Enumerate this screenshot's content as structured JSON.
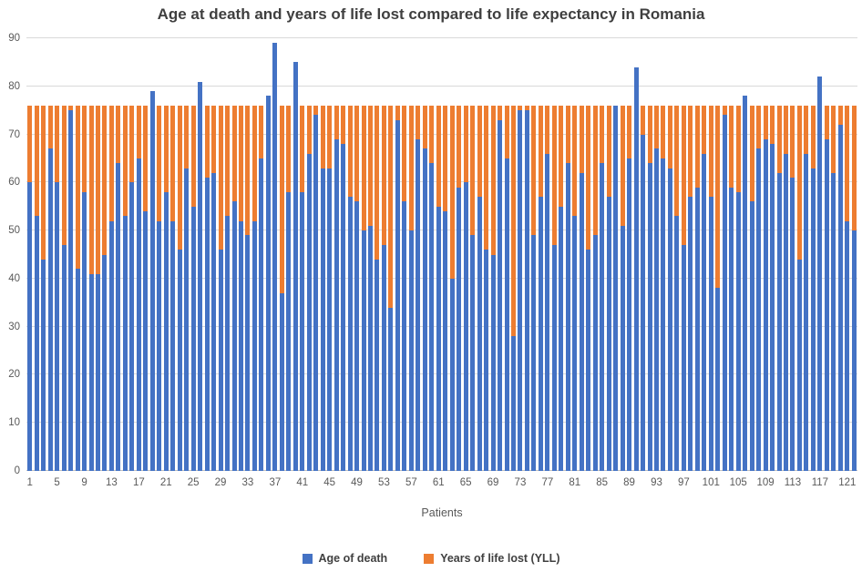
{
  "title": "Age at death and years of life lost compared to life expectancy in Romania",
  "x_axis_title": "Patients",
  "legend": {
    "items": [
      {
        "label": "Age of death",
        "color": "#4472C4"
      },
      {
        "label": "Years of life lost (YLL)",
        "color": "#ED7D31"
      }
    ]
  },
  "colors": {
    "age_of_death": "#4472C4",
    "years_of_life_lost": "#ED7D31",
    "gridline": "#d9d9d9",
    "axis_text": "#595959",
    "title_text": "#3f3f3f"
  },
  "chart_data": {
    "type": "bar",
    "stacked": true,
    "title": "Age at death and years of life lost compared to life expectancy in Romania",
    "xlabel": "Patients",
    "ylabel": "",
    "ylim": [
      0,
      90
    ],
    "grid": true,
    "legend_position": "bottom",
    "life_expectancy_romania": 76,
    "n_patients": 122,
    "y_ticks": [
      0,
      10,
      20,
      30,
      40,
      50,
      60,
      70,
      80,
      90
    ],
    "x_tick_labels": [
      "1",
      "5",
      "9",
      "13",
      "17",
      "21",
      "25",
      "29",
      "33",
      "37",
      "41",
      "45",
      "49",
      "53",
      "57",
      "61",
      "65",
      "69",
      "73",
      "77",
      "81",
      "85",
      "89",
      "93",
      "97",
      "101",
      "105",
      "109",
      "113",
      "117",
      "121"
    ],
    "x_tick_step": 4,
    "series": [
      {
        "name": "Age of death",
        "color": "#4472C4",
        "values": [
          60,
          53,
          44,
          67,
          60,
          47,
          75,
          42,
          58,
          41,
          41,
          45,
          52,
          64,
          53,
          60,
          65,
          54,
          79,
          52,
          58,
          52,
          46,
          63,
          55,
          81,
          61,
          62,
          46,
          53,
          56,
          52,
          49,
          52,
          65,
          78,
          89,
          37,
          58,
          85,
          58,
          66,
          74,
          63,
          63,
          69,
          68,
          57,
          56,
          50,
          51,
          44,
          47,
          34,
          73,
          56,
          50,
          69,
          67,
          64,
          55,
          54,
          40,
          59,
          60,
          49,
          57,
          46,
          45,
          73,
          65,
          28,
          75,
          75,
          49,
          57,
          66,
          47,
          55,
          64,
          53,
          62,
          46,
          49,
          64,
          57,
          76,
          51,
          65,
          84,
          70,
          64,
          67,
          65,
          63,
          53,
          47,
          57,
          59,
          66,
          57,
          38,
          74,
          59,
          58,
          78,
          56,
          67,
          69,
          68,
          62,
          66,
          61,
          44,
          66,
          63,
          82,
          69,
          62,
          72,
          52,
          50
        ]
      },
      {
        "name": "Years of life lost (YLL)",
        "color": "#ED7D31",
        "values": [
          16,
          23,
          32,
          9,
          16,
          29,
          1,
          34,
          18,
          35,
          35,
          31,
          24,
          12,
          23,
          16,
          11,
          22,
          0,
          24,
          18,
          24,
          30,
          13,
          21,
          0,
          15,
          14,
          30,
          23,
          20,
          24,
          27,
          24,
          11,
          0,
          0,
          39,
          18,
          0,
          18,
          10,
          2,
          13,
          13,
          7,
          8,
          19,
          20,
          26,
          25,
          32,
          29,
          42,
          3,
          20,
          26,
          7,
          9,
          12,
          21,
          22,
          36,
          17,
          16,
          27,
          19,
          30,
          31,
          3,
          11,
          48,
          1,
          1,
          27,
          19,
          10,
          29,
          21,
          12,
          23,
          14,
          30,
          27,
          12,
          19,
          0,
          25,
          11,
          0,
          6,
          12,
          9,
          11,
          13,
          23,
          29,
          19,
          17,
          10,
          19,
          38,
          2,
          17,
          18,
          0,
          20,
          9,
          7,
          8,
          14,
          10,
          15,
          32,
          10,
          13,
          0,
          7,
          14,
          4,
          24,
          26
        ]
      }
    ]
  }
}
